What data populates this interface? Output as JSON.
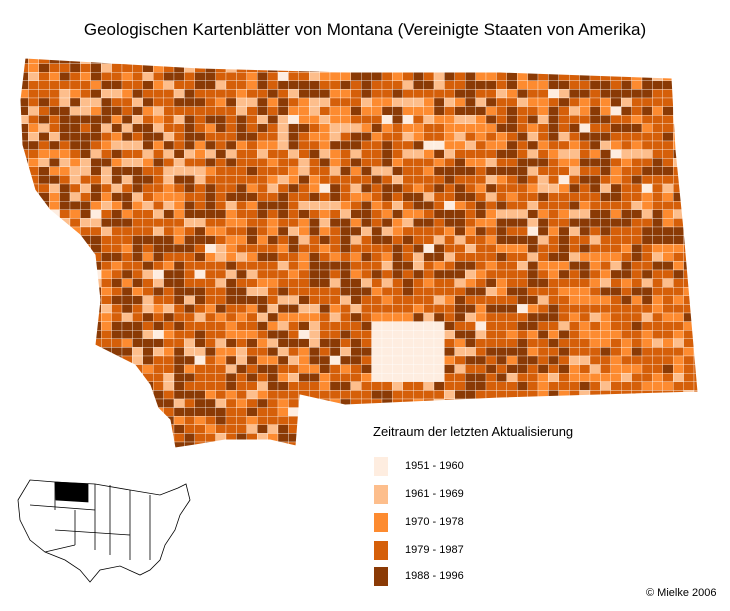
{
  "title": "Geologischen Kartenblätter von Montana (Vereinigte Staaten von Amerika)",
  "legend": {
    "title": "Zeitraum der letzten Aktualisierung",
    "items": [
      {
        "label": "1951 - 1960",
        "color": "#feede0"
      },
      {
        "label": "1961 - 1969",
        "color": "#fdbe8c"
      },
      {
        "label": "1970 - 1978",
        "color": "#fd8b30"
      },
      {
        "label": "1979 - 1987",
        "color": "#d55f09"
      },
      {
        "label": "1988 - 1996",
        "color": "#8a3a05"
      }
    ]
  },
  "inset": {
    "highlight": "Montana",
    "highlight_color": "#000000"
  },
  "credit": "© Mielke 2006"
}
